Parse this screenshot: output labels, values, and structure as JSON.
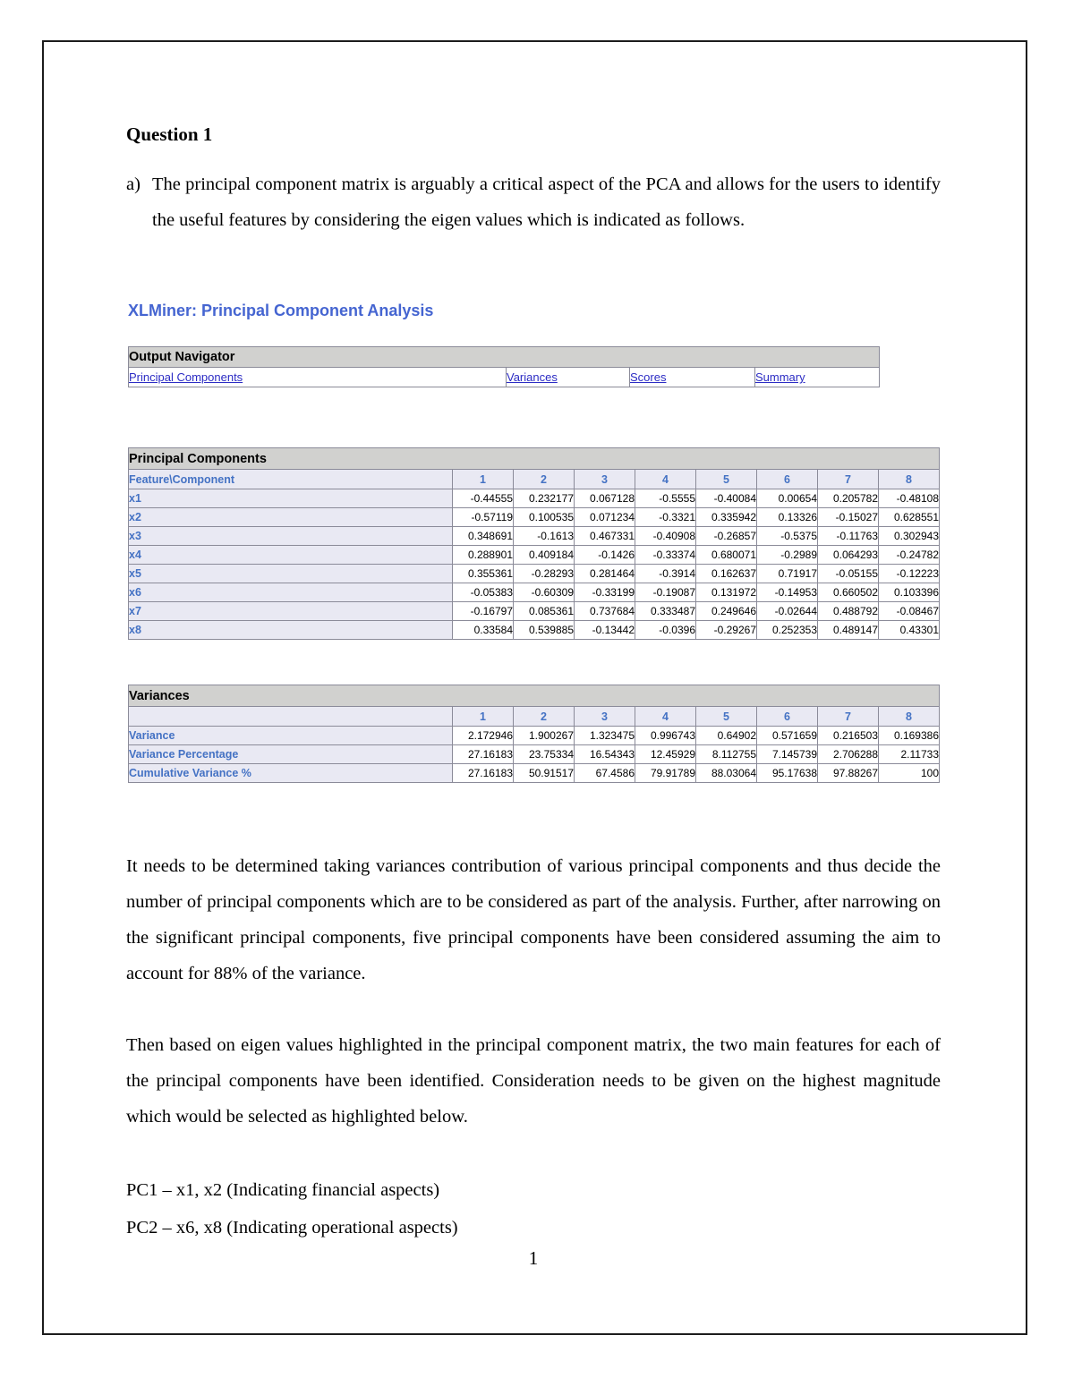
{
  "page": {
    "question_title": "Question 1",
    "list_marker": "a)",
    "para_a": "The principal component matrix is arguably a critical aspect of the PCA and allows for the users to identify the useful features by considering the eigen values which is indicated as follows.",
    "para_body1": "It needs to be determined taking variances contribution of various principal components and thus decide the number of principal components which are to be considered as part of the analysis. Further, after narrowing on the significant principal components, five principal components have been considered assuming the aim to account for 88% of the variance.",
    "para_body2": "Then based on eigen values highlighted in the principal component matrix, the two main features for each of the principal components have been identified. Consideration needs to be given on the highest magnitude which would be selected as highlighted below.",
    "pc1_line": "PC1 – x1, x2 (Indicating financial aspects)",
    "pc2_line": "PC2 – x6, x8 (Indicating operational aspects)",
    "page_number": "1"
  },
  "xlminer": {
    "title": "XLMiner: Principal Component Analysis",
    "nav": {
      "header": "Output Navigator",
      "links": [
        "Principal Components",
        "Variances",
        "Scores",
        "Summary"
      ]
    },
    "pc_table": {
      "section_title": "Principal Components",
      "corner_label": "Feature\\Component",
      "col_headers": [
        "1",
        "2",
        "3",
        "4",
        "5",
        "6",
        "7",
        "8"
      ],
      "rows": [
        {
          "label": "x1",
          "values": [
            "-0.44555",
            "0.232177",
            "0.067128",
            "-0.5555",
            "-0.40084",
            "0.00654",
            "0.205782",
            "-0.48108"
          ]
        },
        {
          "label": "x2",
          "values": [
            "-0.57119",
            "0.100535",
            "0.071234",
            "-0.3321",
            "0.335942",
            "0.13326",
            "-0.15027",
            "0.628551"
          ]
        },
        {
          "label": "x3",
          "values": [
            "0.348691",
            "-0.1613",
            "0.467331",
            "-0.40908",
            "-0.26857",
            "-0.5375",
            "-0.11763",
            "0.302943"
          ]
        },
        {
          "label": "x4",
          "values": [
            "0.288901",
            "0.409184",
            "-0.1426",
            "-0.33374",
            "0.680071",
            "-0.2989",
            "0.064293",
            "-0.24782"
          ]
        },
        {
          "label": "x5",
          "values": [
            "0.355361",
            "-0.28293",
            "0.281464",
            "-0.3914",
            "0.162637",
            "0.71917",
            "-0.05155",
            "-0.12223"
          ]
        },
        {
          "label": "x6",
          "values": [
            "-0.05383",
            "-0.60309",
            "-0.33199",
            "-0.19087",
            "0.131972",
            "-0.14953",
            "0.660502",
            "0.103396"
          ]
        },
        {
          "label": "x7",
          "values": [
            "-0.16797",
            "0.085361",
            "0.737684",
            "0.333487",
            "0.249646",
            "-0.02644",
            "0.488792",
            "-0.08467"
          ]
        },
        {
          "label": "x8",
          "values": [
            "0.33584",
            "0.539885",
            "-0.13442",
            "-0.0396",
            "-0.29267",
            "0.252353",
            "0.489147",
            "0.43301"
          ]
        }
      ]
    },
    "var_table": {
      "section_title": "Variances",
      "corner_label": "",
      "col_headers": [
        "1",
        "2",
        "3",
        "4",
        "5",
        "6",
        "7",
        "8"
      ],
      "rows": [
        {
          "label": "Variance",
          "values": [
            "2.172946",
            "1.900267",
            "1.323475",
            "0.996743",
            "0.64902",
            "0.571659",
            "0.216503",
            "0.169386"
          ]
        },
        {
          "label": "Variance Percentage",
          "values": [
            "27.16183",
            "23.75334",
            "16.54343",
            "12.45929",
            "8.112755",
            "7.145739",
            "2.706288",
            "2.11733"
          ]
        },
        {
          "label": "Cumulative Variance %",
          "values": [
            "27.16183",
            "50.91517",
            "67.4586",
            "79.91789",
            "88.03064",
            "95.17638",
            "97.88267",
            "100"
          ]
        }
      ]
    }
  },
  "colors": {
    "section_header_gray": "#d1d1cf",
    "lavender_header": "#e9e9f3",
    "label_blue": "#4472c4",
    "link_blue": "#2b2bc4",
    "title_blue": "#4565d1"
  }
}
